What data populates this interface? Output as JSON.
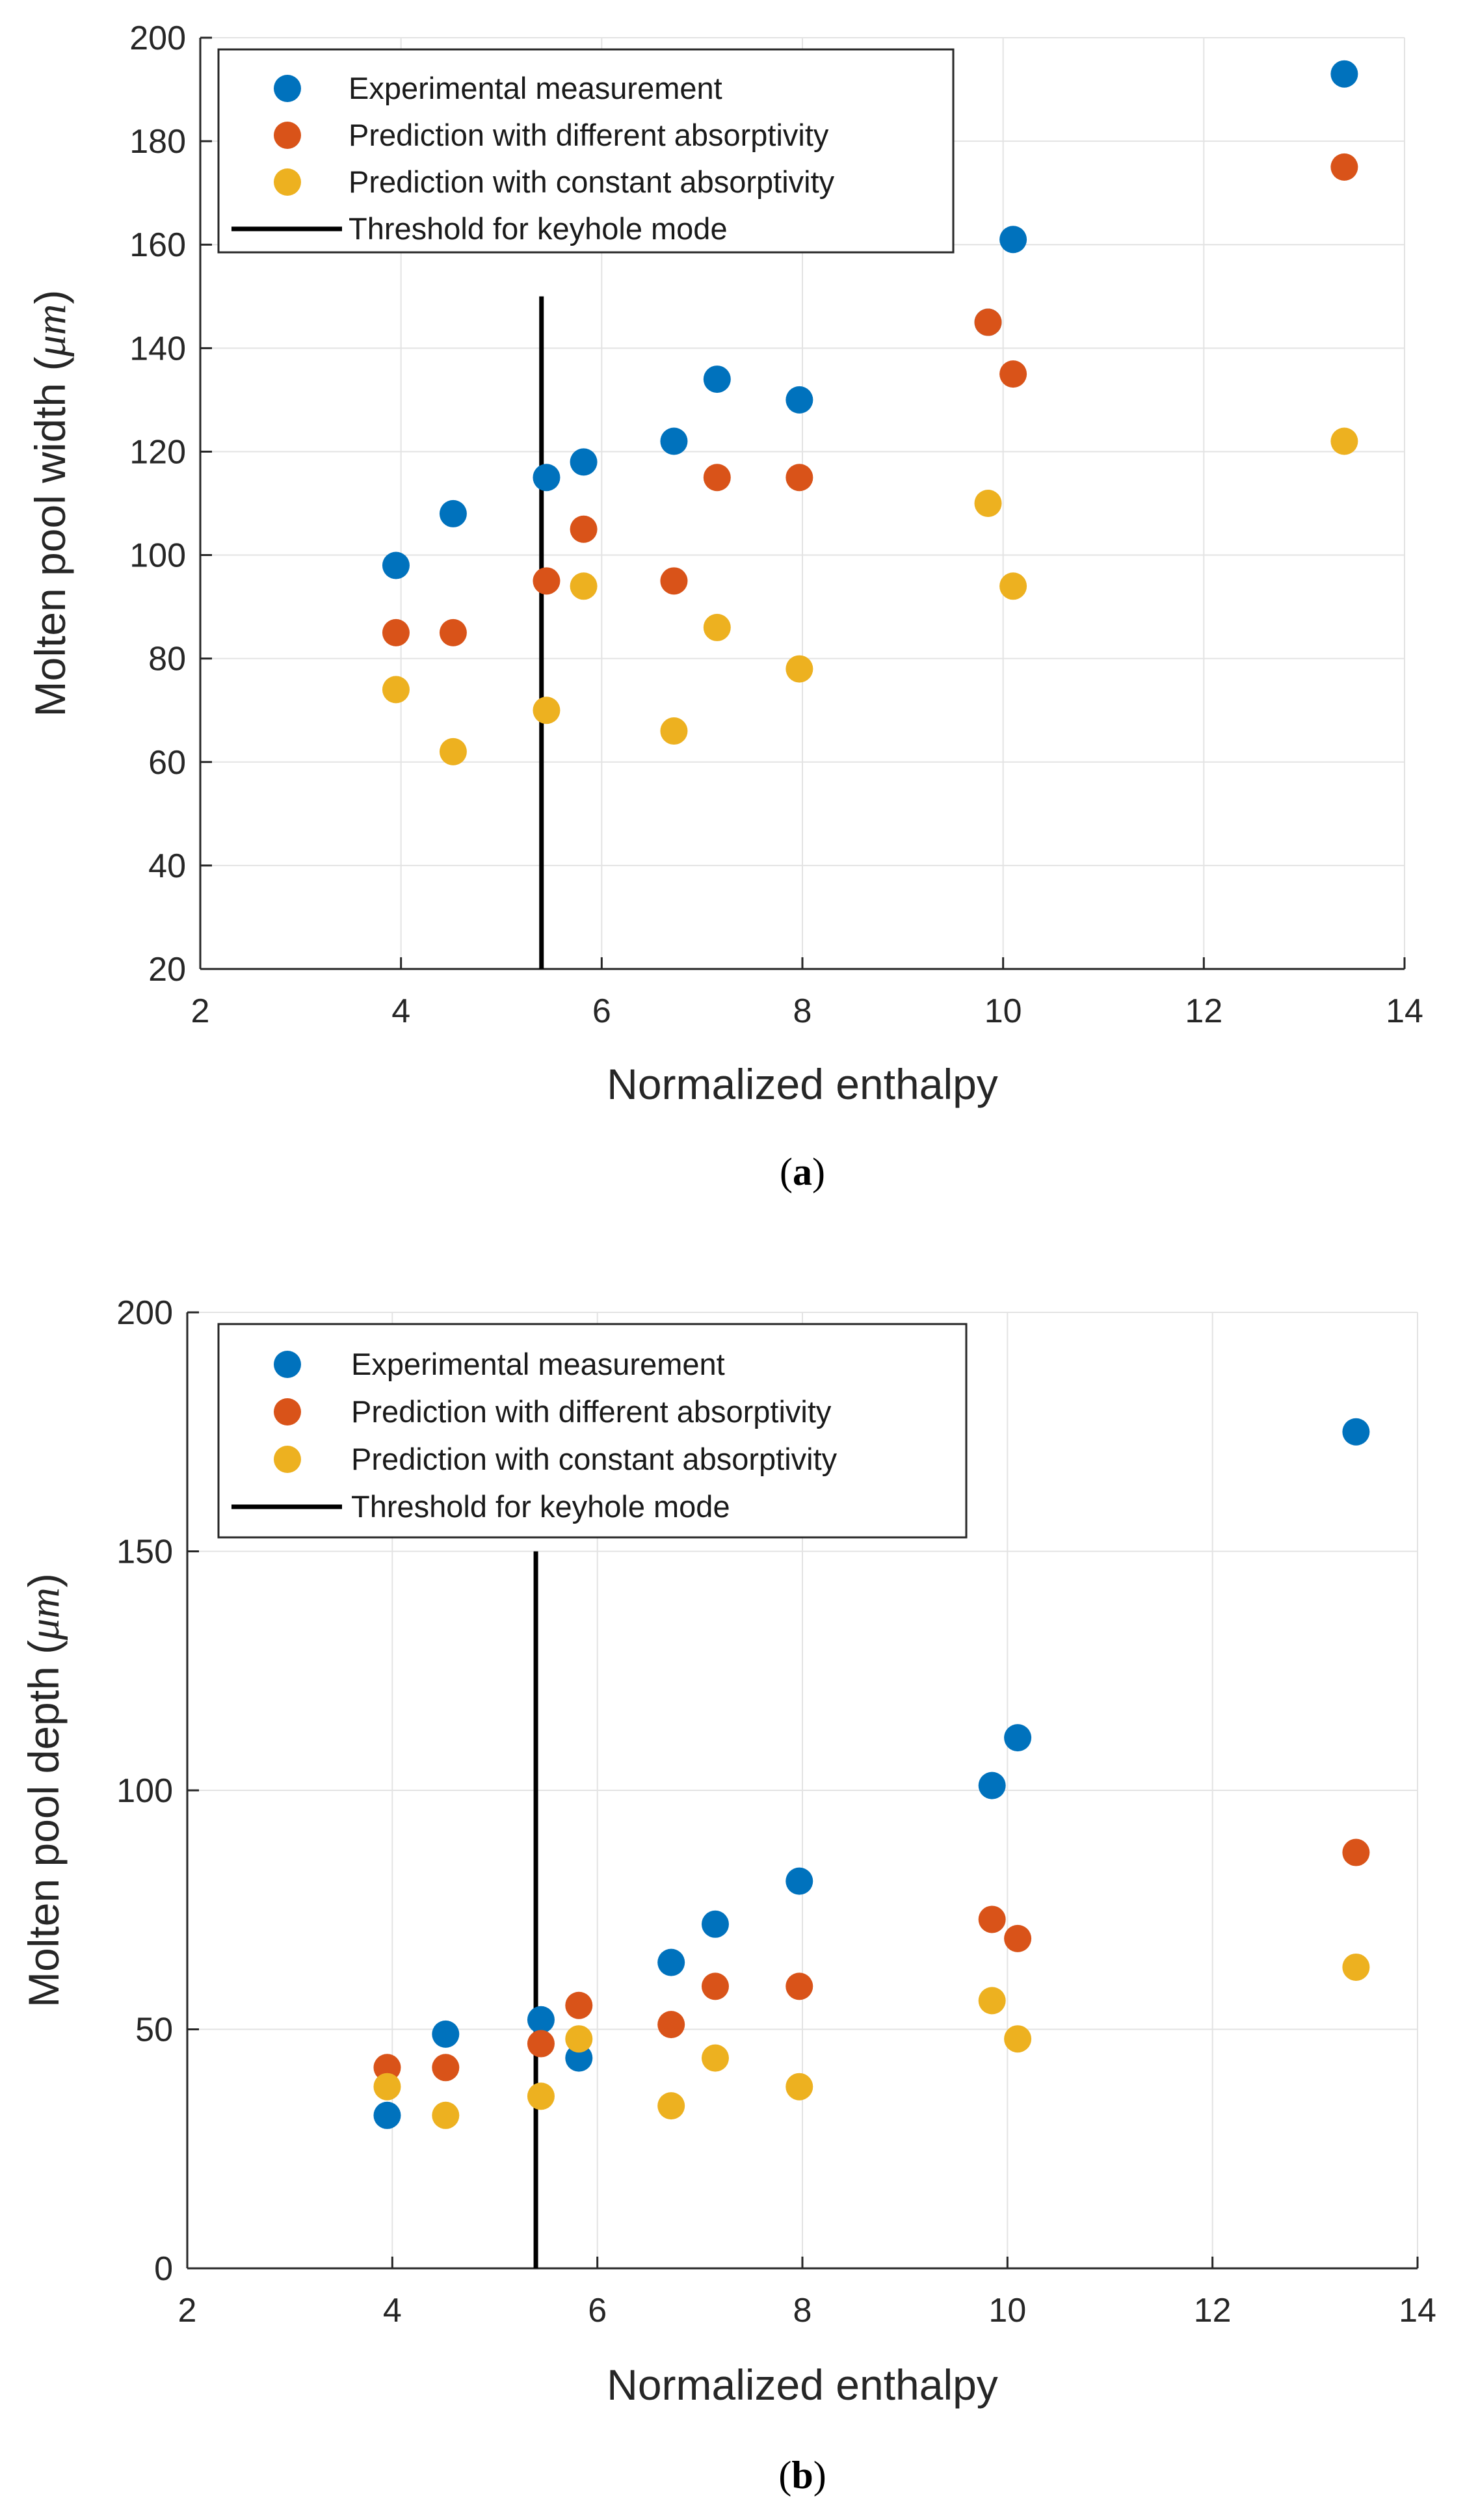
{
  "chart_data": [
    {
      "type": "scatter",
      "caption": "a",
      "title": "",
      "xlabel": "Normalized enthalpy",
      "ylabel_prefix": "Molten pool width (",
      "ylabel_unit": "μm",
      "ylabel_suffix": ")",
      "xlim": [
        2,
        14
      ],
      "ylim": [
        20,
        200
      ],
      "xticks": [
        2,
        4,
        6,
        8,
        10,
        12,
        14
      ],
      "yticks": [
        20,
        40,
        60,
        80,
        100,
        120,
        140,
        160,
        180,
        200
      ],
      "grid": true,
      "legend_position": "top-left",
      "series": [
        {
          "name": "Experimental measurement",
          "color": "#0072BD",
          "x": [
            3.95,
            4.52,
            5.45,
            5.82,
            6.72,
            7.15,
            7.97,
            9.85,
            10.1,
            13.4
          ],
          "y": [
            98,
            108,
            115,
            118,
            122,
            134,
            130,
            145,
            161,
            193
          ]
        },
        {
          "name": "Prediction with different absorptivity",
          "color": "#D95319",
          "x": [
            3.95,
            4.52,
            5.45,
            5.82,
            6.72,
            7.15,
            7.97,
            9.85,
            10.1,
            13.4
          ],
          "y": [
            85,
            85,
            95,
            105,
            95,
            115,
            115,
            145,
            135,
            175
          ]
        },
        {
          "name": "Prediction with constant absorptivity",
          "color": "#EDB120",
          "x": [
            3.95,
            4.52,
            5.45,
            5.82,
            6.72,
            7.15,
            7.97,
            9.85,
            10.1,
            13.4
          ],
          "y": [
            74,
            62,
            70,
            94,
            66,
            86,
            78,
            110,
            94,
            122
          ]
        }
      ],
      "threshold": {
        "name": "Threshold for keyhole mode",
        "color": "#000000",
        "x": 5.4,
        "y_range": [
          20,
          150
        ]
      }
    },
    {
      "type": "scatter",
      "caption": "b",
      "title": "",
      "xlabel": "Normalized enthalpy",
      "ylabel_prefix": "Molten pool depth (",
      "ylabel_unit": "μm",
      "ylabel_suffix": ")",
      "xlim": [
        2,
        14
      ],
      "ylim": [
        0,
        200
      ],
      "xticks": [
        2,
        4,
        6,
        8,
        10,
        12,
        14
      ],
      "yticks": [
        0,
        50,
        100,
        150,
        200
      ],
      "grid": true,
      "legend_position": "top-left",
      "series": [
        {
          "name": "Experimental measurement",
          "color": "#0072BD",
          "x": [
            3.95,
            4.52,
            5.45,
            5.82,
            6.72,
            7.15,
            7.97,
            9.85,
            10.1,
            13.4
          ],
          "y": [
            32,
            49,
            52,
            44,
            64,
            72,
            81,
            101,
            111,
            175
          ]
        },
        {
          "name": "Prediction with different absorptivity",
          "color": "#D95319",
          "x": [
            3.95,
            4.52,
            5.45,
            5.82,
            6.72,
            7.15,
            7.97,
            9.85,
            10.1,
            13.4
          ],
          "y": [
            42,
            42,
            47,
            55,
            51,
            59,
            59,
            73,
            69,
            87
          ]
        },
        {
          "name": "Prediction with constant absorptivity",
          "color": "#EDB120",
          "x": [
            3.95,
            4.52,
            5.45,
            5.82,
            6.72,
            7.15,
            7.97,
            9.85,
            10.1,
            13.4
          ],
          "y": [
            38,
            32,
            36,
            48,
            34,
            44,
            38,
            56,
            48,
            63
          ]
        }
      ],
      "threshold": {
        "name": "Threshold for keyhole mode",
        "color": "#000000",
        "x": 5.4,
        "y_range": [
          0,
          150
        ]
      }
    }
  ]
}
